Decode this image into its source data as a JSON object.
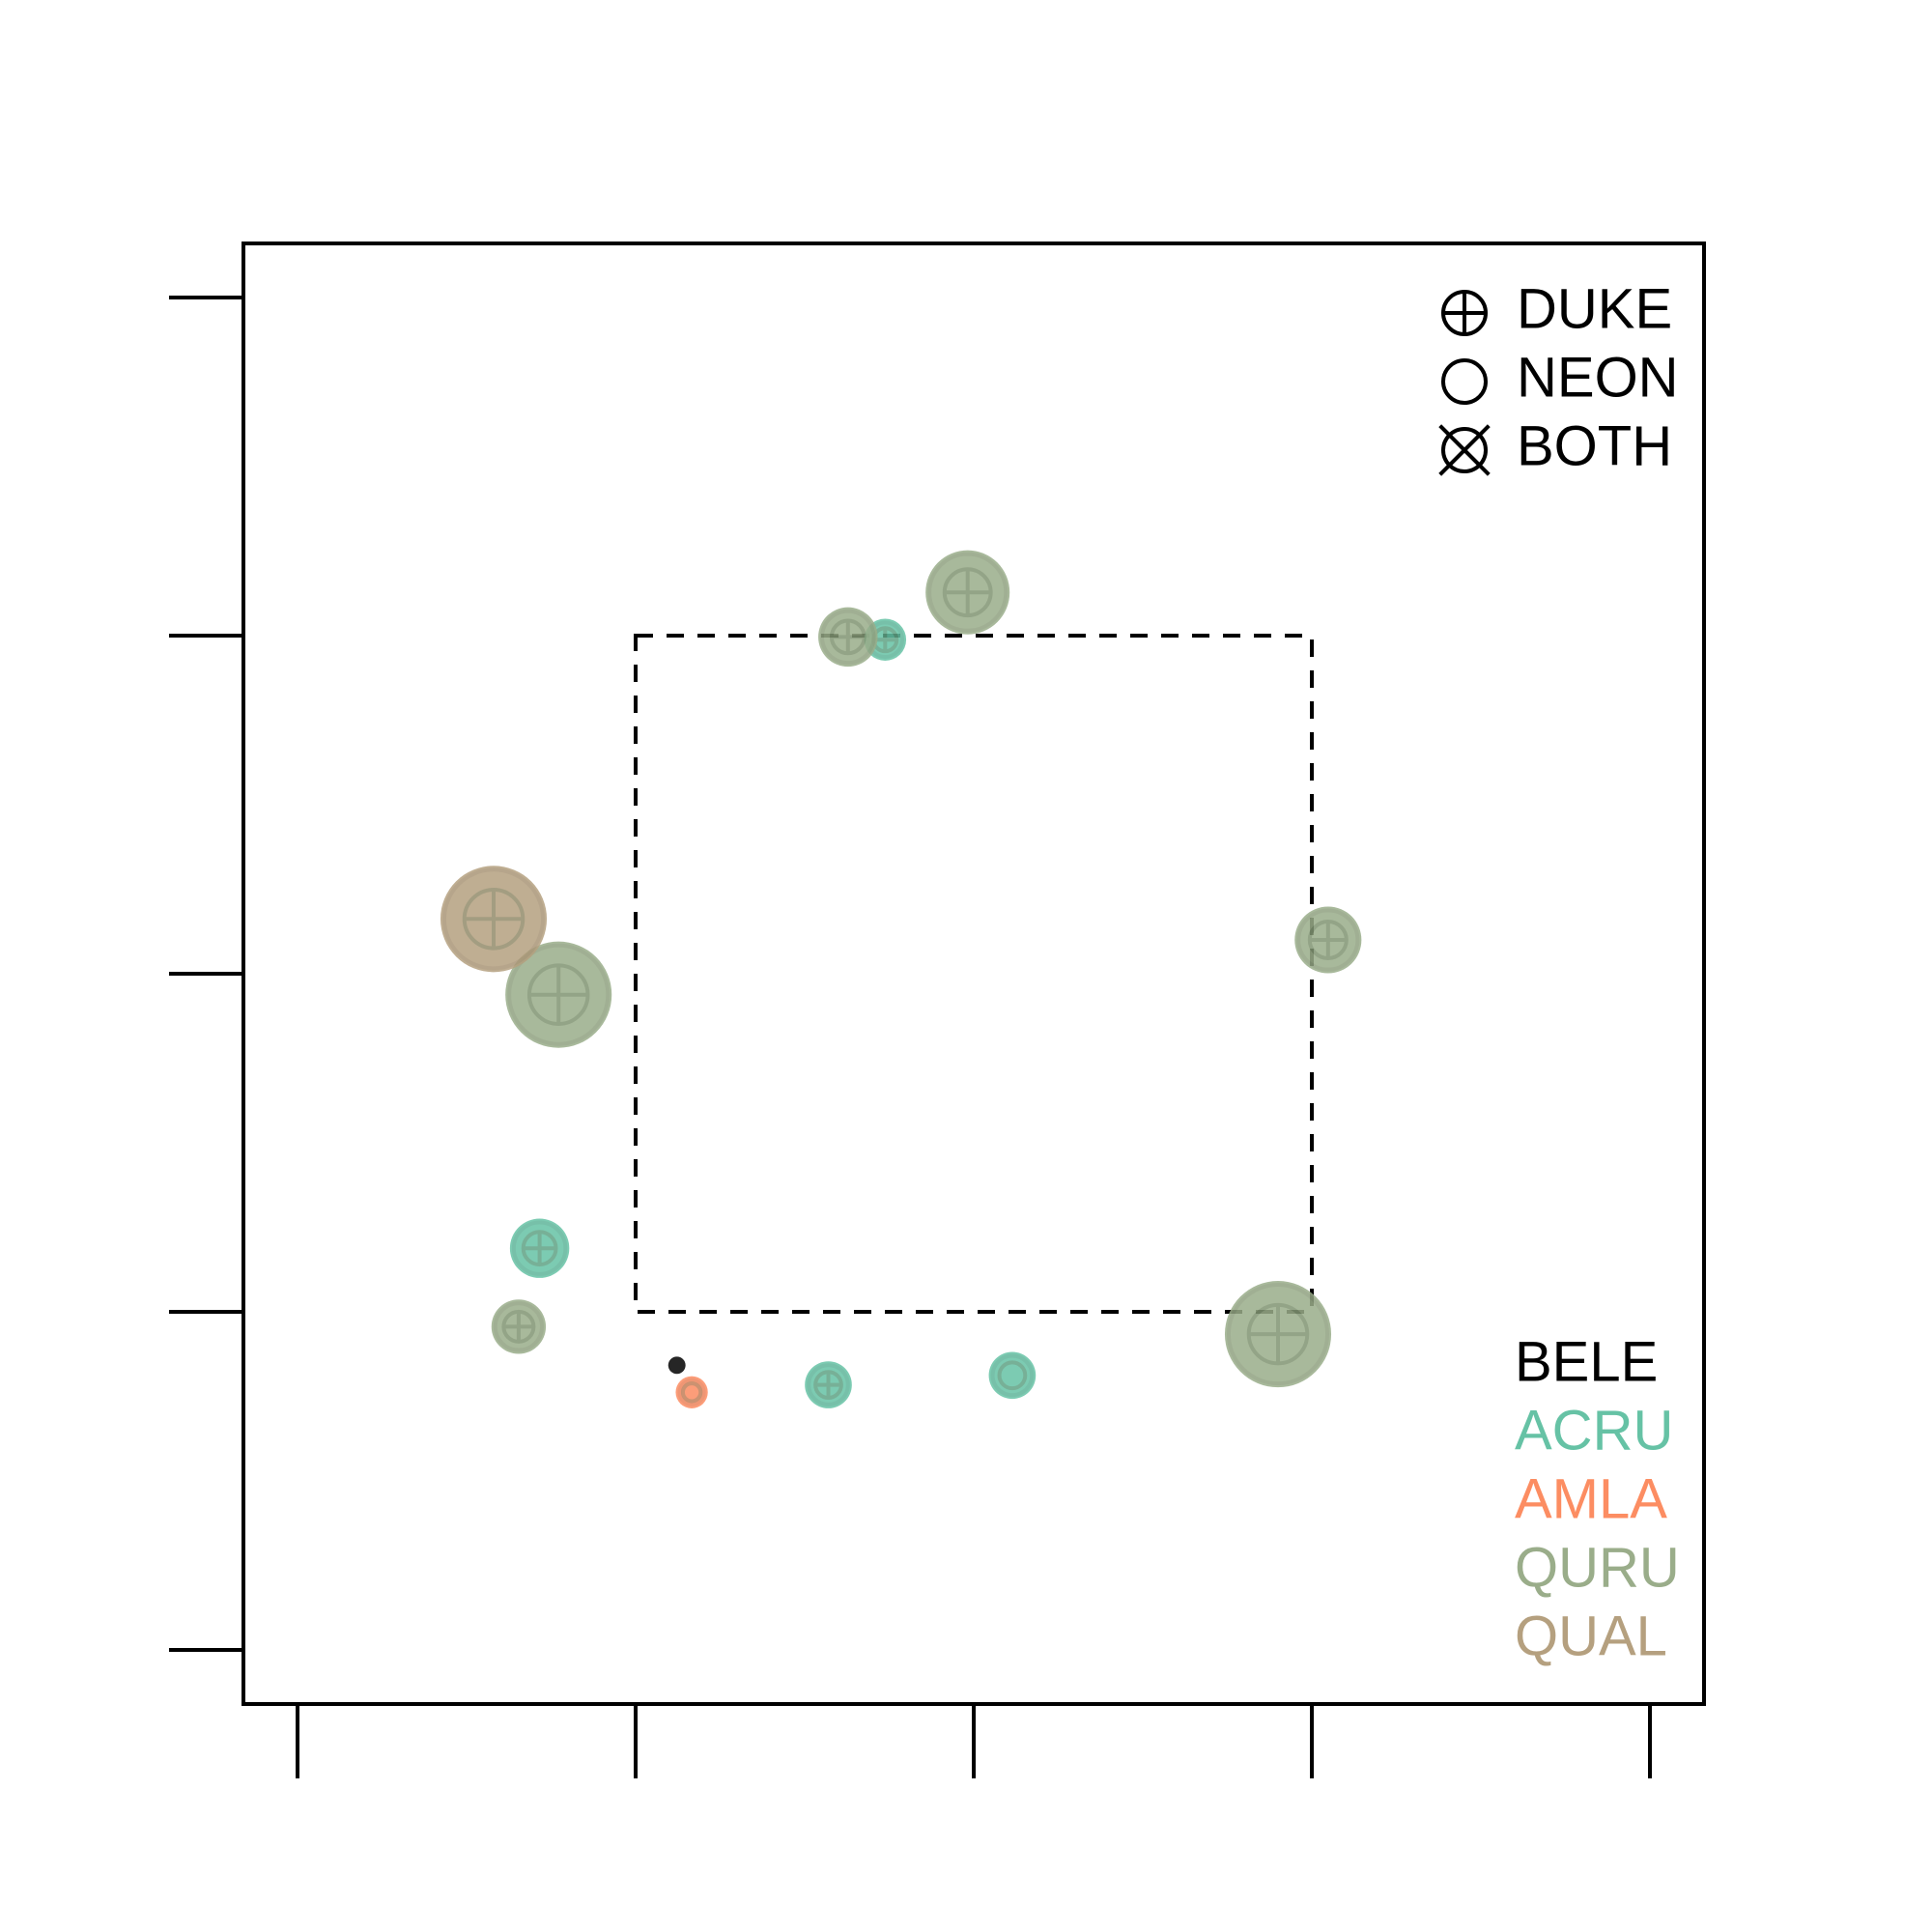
{
  "chart_data": {
    "type": "scatter",
    "xlim": [
      -0.8,
      20.8
    ],
    "ylim": [
      -0.8,
      20.8
    ],
    "xticks": [
      0,
      5,
      10,
      15,
      20
    ],
    "yticks": [
      0,
      5,
      10,
      15,
      20
    ],
    "box": {
      "x": [
        5,
        15
      ],
      "y": [
        5,
        15
      ]
    },
    "symbol_legend": [
      {
        "label": "DUKE",
        "shape": "plus-circle"
      },
      {
        "label": "NEON",
        "shape": "circle"
      },
      {
        "label": "BOTH",
        "shape": "x-circle"
      }
    ],
    "series": [
      {
        "name": "BELE",
        "color": "#000000",
        "x": [
          5.61
        ],
        "y": [
          4.21
        ],
        "sizes": [
          2.8
        ],
        "sources": [
          "NEON"
        ]
      },
      {
        "name": "ACRU",
        "color": "#66c2a5",
        "x": [
          8.69,
          3.58,
          7.85,
          10.57
        ],
        "y": [
          14.94,
          5.94,
          3.92,
          4.06
        ],
        "sizes": [
          6.8,
          9.6,
          7.6,
          7.6
        ],
        "sources": [
          "DUKE",
          "DUKE",
          "DUKE",
          "NEON"
        ]
      },
      {
        "name": "AMLA",
        "color": "#fc8d62",
        "x": [
          5.83
        ],
        "y": [
          3.81
        ],
        "sizes": [
          5.2
        ],
        "sources": [
          "NEON"
        ]
      },
      {
        "name": "QURU",
        "color": "#9aad8a",
        "x": [
          8.14,
          9.91,
          3.86,
          15.24,
          3.27,
          14.5
        ],
        "y": [
          14.98,
          15.64,
          9.69,
          10.5,
          4.78,
          4.67
        ],
        "sizes": [
          9.6,
          13.6,
          17.2,
          10.8,
          8.8,
          17.2
        ],
        "sources": [
          "DUKE",
          "DUKE",
          "DUKE",
          "DUKE",
          "DUKE",
          "DUKE"
        ]
      },
      {
        "name": "QUAL",
        "color": "#b5a07f",
        "x": [
          2.9
        ],
        "y": [
          10.81
        ],
        "sizes": [
          17.2
        ],
        "sources": [
          "DUKE"
        ]
      }
    ]
  }
}
